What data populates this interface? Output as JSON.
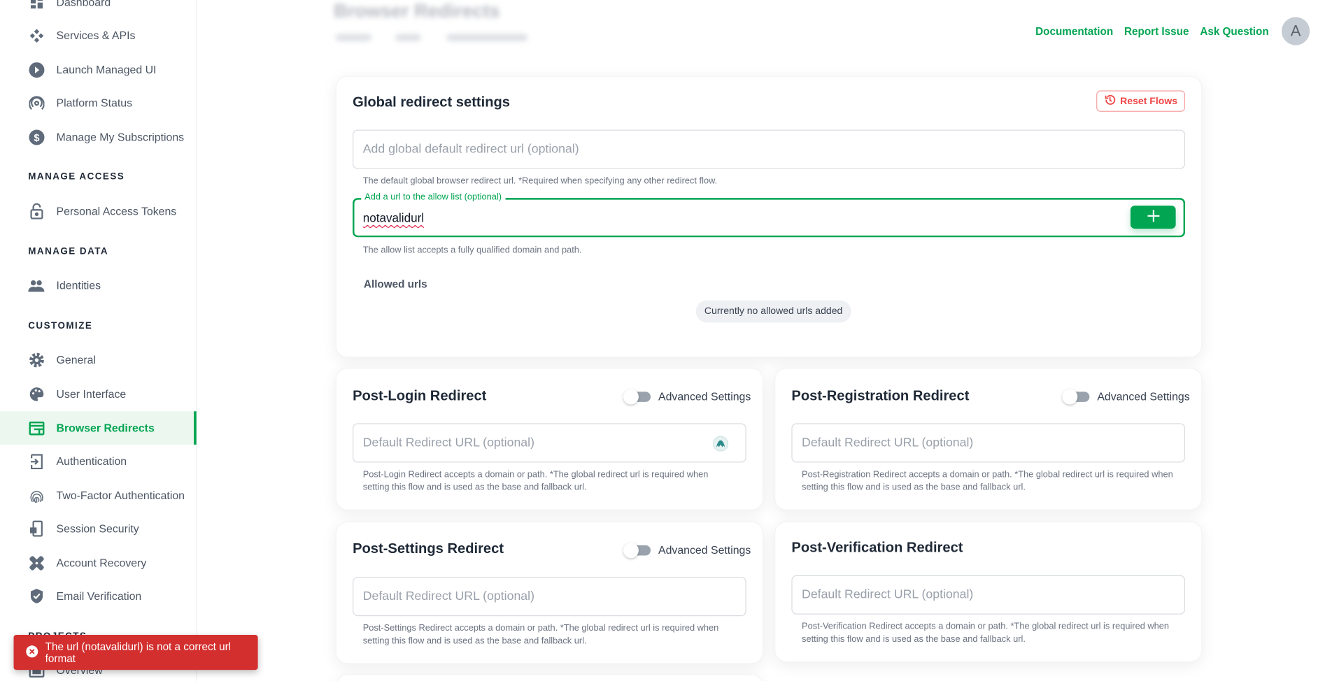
{
  "sidebar": {
    "items": [
      {
        "label": "Dashboard",
        "icon": "dashboard-icon"
      },
      {
        "label": "Services & APIs",
        "icon": "services-icon"
      },
      {
        "label": "Launch Managed UI",
        "icon": "play-icon"
      },
      {
        "label": "Platform Status",
        "icon": "broadcast-icon"
      },
      {
        "label": "Manage My Subscriptions",
        "icon": "dollar-icon"
      },
      {
        "label": "Personal Access Tokens",
        "icon": "lock-icon"
      },
      {
        "label": "Identities",
        "icon": "users-icon"
      },
      {
        "label": "General",
        "icon": "gear-icon"
      },
      {
        "label": "User Interface",
        "icon": "palette-icon"
      },
      {
        "label": "Browser Redirects",
        "icon": "browser-icon",
        "active": true
      },
      {
        "label": "Authentication",
        "icon": "login-icon"
      },
      {
        "label": "Two-Factor Authentication",
        "icon": "fingerprint-icon"
      },
      {
        "label": "Session Security",
        "icon": "phone-lock-icon"
      },
      {
        "label": "Account Recovery",
        "icon": "bandage-icon"
      },
      {
        "label": "Email Verification",
        "icon": "shield-check-icon"
      },
      {
        "label": "Overview",
        "icon": "overview-icon"
      }
    ],
    "sections": [
      "MANAGE ACCESS",
      "MANAGE DATA",
      "CUSTOMIZE",
      "PROJECTS"
    ]
  },
  "header": {
    "title": "Browser Redirects",
    "links": [
      "Documentation",
      "Report Issue",
      "Ask Question"
    ],
    "avatar": "A"
  },
  "global": {
    "title": "Global redirect settings",
    "reset_label": "Reset Flows",
    "default_placeholder": "Add global default redirect url (optional)",
    "default_help": "The default global browser redirect url. *Required when specifying any other redirect flow.",
    "allow_label": "Add a url to the allow list (optional)",
    "allow_value": "notavalidurl",
    "allow_help": "The allow list accepts a fully qualified domain and path.",
    "allowed_title": "Allowed urls",
    "allowed_empty": "Currently no allowed urls added"
  },
  "flows": [
    {
      "title": "Post-Login Redirect",
      "toggle": "Advanced Settings",
      "toggle_on": false,
      "placeholder": "Default Redirect URL (optional)",
      "help": "Post-Login Redirect accepts a domain or path. *The global redirect url is required when setting this flow and is used as the base and fallback url."
    },
    {
      "title": "Post-Registration Redirect",
      "toggle": "Advanced Settings",
      "toggle_on": false,
      "placeholder": "Default Redirect URL (optional)",
      "help": "Post-Registration Redirect accepts a domain or path. *The global redirect url is required when setting this flow and is used as the base and fallback url."
    },
    {
      "title": "Post-Settings Redirect",
      "toggle": "Advanced Settings",
      "toggle_on": false,
      "placeholder": "Default Redirect URL (optional)",
      "help": "Post-Settings Redirect accepts a domain or path. *The global redirect url is required when setting this flow and is used as the base and fallback url."
    },
    {
      "title": "Post-Verification Redirect",
      "placeholder": "Default Redirect URL (optional)",
      "help": "Post-Verification Redirect accepts a domain or path. *The global redirect url is required when setting this flow and is used as the base and fallback url."
    }
  ],
  "toast": {
    "message": "The url (notavalidurl) is not a correct url format",
    "icon": "error-circle-icon"
  },
  "colors": {
    "accent": "#02a552",
    "danger": "#ef4444",
    "toast": "#d32f2f"
  }
}
